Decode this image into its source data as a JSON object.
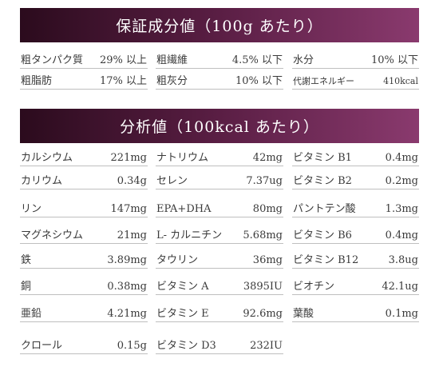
{
  "guaranteed": {
    "title": "保証成分値（100g あたり）",
    "rows": [
      [
        {
          "label": "粗タンパク質",
          "value": "29% 以上"
        },
        {
          "label": "粗繊維",
          "value": "4.5% 以下"
        },
        {
          "label": "水分",
          "value": "10% 以下"
        }
      ],
      [
        {
          "label": "粗脂肪",
          "value": "17% 以上"
        },
        {
          "label": "粗灰分",
          "value": "10% 以下"
        },
        {
          "label": "代謝エネルギー",
          "value": "410kcal"
        }
      ]
    ]
  },
  "analysis": {
    "title": "分析値（100kcal あたり）",
    "rows": [
      [
        {
          "label": "カルシウム",
          "value": "221mg"
        },
        {
          "label": "ナトリウム",
          "value": "42mg"
        },
        {
          "label": "ビタミン B1",
          "value": "0.4mg"
        }
      ],
      [
        {
          "label": "カリウム",
          "value": "0.34g"
        },
        {
          "label": "セレン",
          "value": "7.37ug"
        },
        {
          "label": "ビタミン B2",
          "value": "0.2mg"
        }
      ],
      [
        {
          "label": "リン",
          "value": "147mg"
        },
        {
          "label": "EPA+DHA",
          "value": "80mg"
        },
        {
          "label": "パントテン酸",
          "value": "1.3mg"
        }
      ],
      [
        {
          "label": "マグネシウム",
          "value": "21mg"
        },
        {
          "label": "L- カルニチン",
          "value": "5.68mg"
        },
        {
          "label": "ビタミン B6",
          "value": "0.4mg"
        }
      ],
      [
        {
          "label": "鉄",
          "value": "3.89mg"
        },
        {
          "label": "タウリン",
          "value": "36mg"
        },
        {
          "label": "ビタミン B12",
          "value": "3.8ug"
        }
      ],
      [
        {
          "label": "銅",
          "value": "0.38mg"
        },
        {
          "label": "ビタミン A",
          "value": "3895IU"
        },
        {
          "label": "ビオチン",
          "value": "42.1ug"
        }
      ],
      [
        {
          "label": "亜鉛",
          "value": "4.21mg"
        },
        {
          "label": "ビタミン E",
          "value": "92.6mg"
        },
        {
          "label": "葉酸",
          "value": "0.1mg"
        }
      ],
      [
        {
          "label": "クロール",
          "value": "0.15g"
        },
        {
          "label": "ビタミン D3",
          "value": "232IU"
        }
      ]
    ]
  }
}
